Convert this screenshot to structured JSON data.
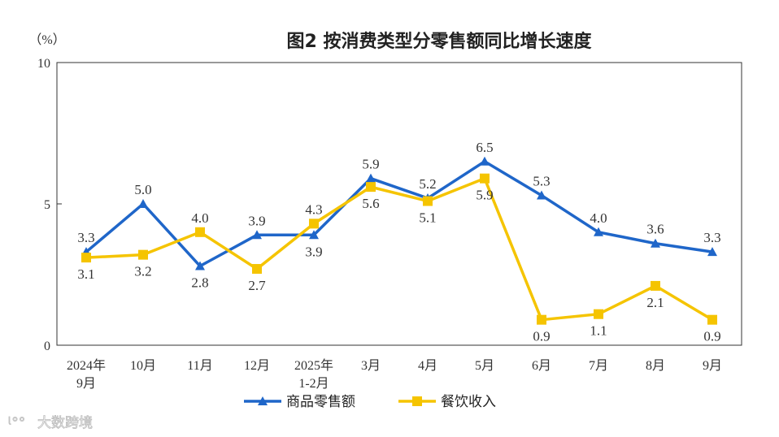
{
  "chart_data": {
    "type": "line",
    "title": "图2  按消费类型分零售额同比增长速度",
    "ylabel": "（%）",
    "ylim": [
      0,
      10
    ],
    "yticks": [
      "0",
      "5",
      "10"
    ],
    "grid": false,
    "legend_position": "bottom",
    "categories": [
      [
        "2024年",
        "9月"
      ],
      [
        "10月"
      ],
      [
        "11月"
      ],
      [
        "12月"
      ],
      [
        "2025年",
        "1-2月"
      ],
      [
        "3月"
      ],
      [
        "4月"
      ],
      [
        "5月"
      ],
      [
        "6月"
      ],
      [
        "7月"
      ],
      [
        "8月"
      ],
      [
        "9月"
      ]
    ],
    "series": [
      {
        "name": "商品零售额",
        "color": "#1f66c9",
        "marker": "triangle",
        "values": [
          3.3,
          5.0,
          2.8,
          3.9,
          3.9,
          5.9,
          5.2,
          6.5,
          5.3,
          4.0,
          3.6,
          3.3
        ]
      },
      {
        "name": "餐饮收入",
        "color": "#f5c400",
        "marker": "square",
        "values": [
          3.1,
          3.2,
          4.0,
          2.7,
          4.3,
          5.6,
          5.1,
          5.9,
          0.9,
          1.1,
          2.1,
          0.9
        ]
      }
    ]
  },
  "watermark": "大数跨境"
}
